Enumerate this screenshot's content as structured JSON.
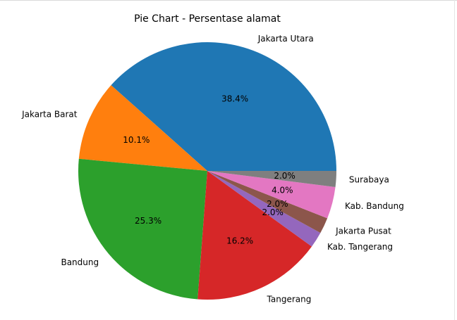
{
  "chart_data": {
    "type": "pie",
    "title": "Pie Chart - Persentase alamat",
    "slices": [
      {
        "label": "Jakarta Utara",
        "value": 38.4,
        "pct_label": "38.4%",
        "color": "#1f77b4"
      },
      {
        "label": "Jakarta Barat",
        "value": 10.1,
        "pct_label": "10.1%",
        "color": "#ff7f0e"
      },
      {
        "label": "Bandung",
        "value": 25.3,
        "pct_label": "25.3%",
        "color": "#2ca02c"
      },
      {
        "label": "Tangerang",
        "value": 16.2,
        "pct_label": "16.2%",
        "color": "#d62728"
      },
      {
        "label": "Kab. Tangerang",
        "value": 2.0,
        "pct_label": "2.0%",
        "color": "#9467bd"
      },
      {
        "label": "Jakarta Pusat",
        "value": 2.0,
        "pct_label": "2.0%",
        "color": "#8c564b"
      },
      {
        "label": "Kab. Bandung",
        "value": 4.0,
        "pct_label": "4.0%",
        "color": "#e377c2"
      },
      {
        "label": "Surabaya",
        "value": 2.0,
        "pct_label": "2.0%",
        "color": "#7f7f7f"
      }
    ]
  }
}
